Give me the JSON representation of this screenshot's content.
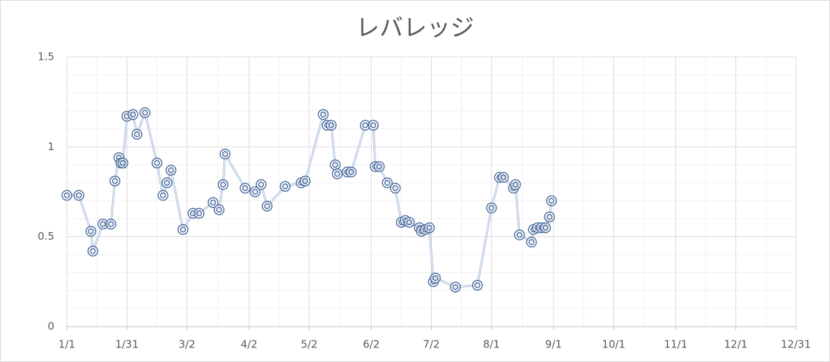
{
  "chart_data": {
    "type": "line",
    "title": "レバレッジ",
    "x": [
      "1/1",
      "1/7",
      "1/13",
      "1/14",
      "1/19",
      "1/23",
      "1/25",
      "1/27",
      "1/28",
      "1/29",
      "1/31",
      "2/3",
      "2/5",
      "2/9",
      "2/15",
      "2/18",
      "2/20",
      "2/22",
      "2/28",
      "3/5",
      "3/8",
      "3/15",
      "3/18",
      "3/20",
      "3/21",
      "3/31",
      "4/5",
      "4/8",
      "4/11",
      "4/20",
      "4/28",
      "4/30",
      "5/9",
      "5/11",
      "5/13",
      "5/15",
      "5/16",
      "5/21",
      "5/23",
      "5/30",
      "6/3",
      "6/4",
      "6/6",
      "6/10",
      "6/14",
      "6/17",
      "6/19",
      "6/21",
      "6/26",
      "6/27",
      "6/29",
      "7/1",
      "7/3",
      "7/4",
      "7/14",
      "7/25",
      "8/1",
      "8/5",
      "8/7",
      "8/12",
      "8/13",
      "8/15",
      "8/21",
      "8/22",
      "8/24",
      "8/26",
      "8/28",
      "8/30",
      "8/31"
    ],
    "series": [
      {
        "color": "#4f6e9f",
        "values": [
          0.73,
          0.73,
          0.53,
          0.42,
          0.57,
          0.57,
          0.81,
          0.94,
          0.91,
          0.91,
          1.17,
          1.18,
          1.07,
          1.19,
          0.91,
          0.73,
          0.8,
          0.87,
          0.54,
          0.63,
          0.63,
          0.69,
          0.65,
          0.79,
          0.96,
          0.77,
          0.75,
          0.79,
          0.67,
          0.78,
          0.8,
          0.81,
          1.18,
          1.12,
          1.12,
          0.9,
          0.85,
          0.86,
          0.86,
          1.12,
          1.12,
          0.89,
          0.89,
          0.8,
          0.77,
          0.58,
          0.59,
          0.58,
          0.55,
          0.53,
          0.54,
          0.55,
          0.25,
          0.27,
          0.22,
          0.23,
          0.66,
          0.83,
          0.83,
          0.77,
          0.79,
          0.51,
          0.47,
          0.54,
          0.55,
          0.55,
          0.55,
          0.61,
          0.7
        ]
      }
    ],
    "xlim": [
      "1/1",
      "12/31"
    ],
    "xticks": [
      "1/1",
      "1/31",
      "3/2",
      "4/2",
      "5/2",
      "6/2",
      "7/2",
      "8/1",
      "9/1",
      "10/1",
      "11/1",
      "12/1",
      "12/31"
    ],
    "ylim": [
      0,
      1.5
    ],
    "yticks": [
      0,
      0.5,
      1,
      1.5
    ],
    "grid": true
  }
}
